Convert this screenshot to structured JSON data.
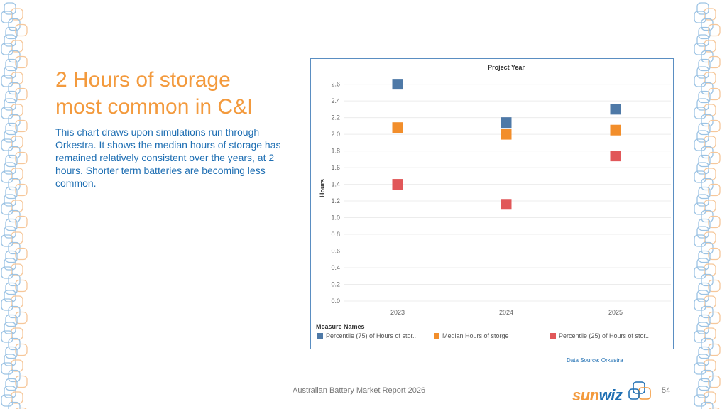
{
  "slide": {
    "title": "2 Hours of storage most common in C&I",
    "body": "This chart draws upon simulations run through Orkestra. It shows the median hours of storage has remained relatively consistent over the years, at 2 hours. Shorter term batteries are becoming less common.",
    "data_source": "Data Source: Orkestra",
    "footer": "Australian Battery Market Report 2026",
    "page_number": "54",
    "logo": {
      "part1": "sun",
      "part2": "wiz"
    }
  },
  "colors": {
    "p75": "#4e79a7",
    "median": "#f28e2b",
    "p25": "#e15759",
    "accent_orange": "#f39a3d",
    "accent_blue": "#1f6fb3"
  },
  "legend": {
    "title": "Measure Names",
    "items": [
      "Percentile (75) of Hours of stor..",
      "Median Hours of storge",
      "Percentile (25) of Hours of stor.."
    ]
  },
  "chart_data": {
    "type": "scatter",
    "title": "Project Year",
    "xlabel": "",
    "ylabel": "Hours",
    "categories": [
      "2023",
      "2024",
      "2025"
    ],
    "yticks": [
      "0.0",
      "0.2",
      "0.4",
      "0.6",
      "0.8",
      "1.0",
      "1.2",
      "1.4",
      "1.6",
      "1.8",
      "2.0",
      "2.2",
      "2.4",
      "2.6"
    ],
    "ylim": [
      0,
      2.75
    ],
    "grid": true,
    "series": [
      {
        "name": "Percentile (75) of Hours of storage",
        "values": [
          2.6,
          2.14,
          2.3
        ]
      },
      {
        "name": "Median Hours of storge",
        "values": [
          2.08,
          2.0,
          2.05
        ]
      },
      {
        "name": "Percentile (25) of Hours of storage",
        "values": [
          1.4,
          1.16,
          1.74
        ]
      }
    ]
  }
}
